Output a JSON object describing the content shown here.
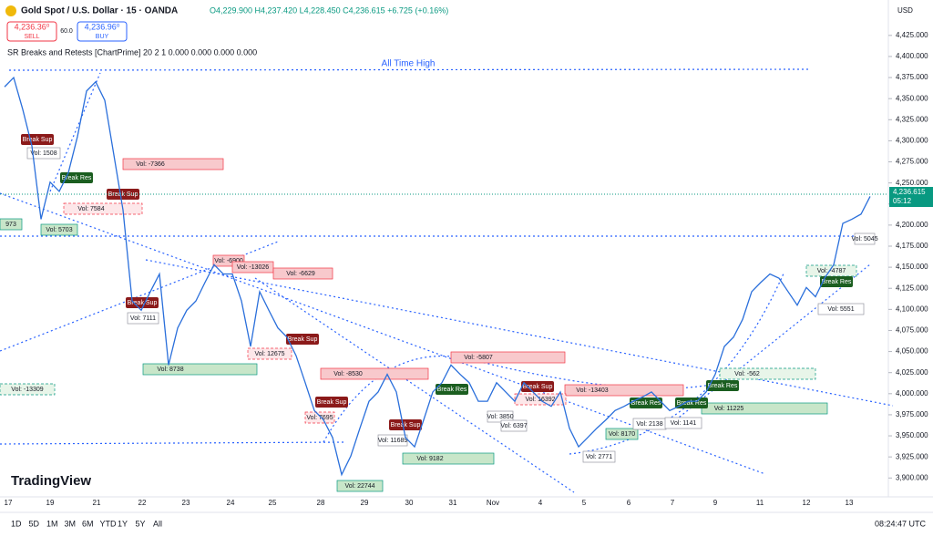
{
  "header": {
    "symbol": "Gold Spot / U.S. Dollar · 15 · OANDA",
    "ohlc": "O4,229.900 H4,237.420 L4,228.450 C4,236.615 +6.725 (+0.16%)",
    "sell_price": "4,236.36⁰",
    "sell_label": "SELL",
    "spread": "60.0",
    "buy_price": "4,236.96⁰",
    "buy_label": "BUY",
    "indicator": "SR Breaks and Retests [ChartPrime] 20 2 1 0.000 0.000 0.000 0.000",
    "currency": "USD"
  },
  "chart_data": {
    "type": "line",
    "color": "#2a6fdb",
    "annotation": "All Time High",
    "values": [
      4364,
      4375,
      4337,
      4294,
      4207,
      4251,
      4240,
      4262,
      4305,
      4359,
      4370,
      4348,
      4283,
      4218,
      4110,
      4099,
      4121,
      4142,
      4034,
      4078,
      4099,
      4110,
      4132,
      4153,
      4142,
      4142,
      4110,
      4056,
      4121,
      4099,
      4078,
      4067,
      4045,
      4013,
      3980,
      3969,
      3948,
      3904,
      3926,
      3959,
      3991,
      4002,
      4023,
      4002,
      3948,
      3937,
      3969,
      4002,
      4013,
      4034,
      4023,
      4013,
      3991,
      3991,
      4013,
      4002,
      3991,
      4013,
      4002,
      3991,
      3985,
      4002,
      3959,
      3937,
      3948,
      3959,
      3969,
      3980,
      3985,
      3991,
      3996,
      4002,
      3991,
      3980,
      3985,
      3991,
      3991,
      4002,
      4023,
      4056,
      4067,
      4088,
      4121,
      4132,
      4142,
      4137,
      4121,
      4105,
      4126,
      4115,
      4137,
      4153,
      4202,
      4207,
      4213,
      4234
    ],
    "ylim": [
      3883,
      4467
    ],
    "yticks": [
      {
        "value": 3900,
        "label": "3,900.000"
      },
      {
        "value": 3925,
        "label": "3,925.000"
      },
      {
        "value": 3950,
        "label": "3,950.000"
      },
      {
        "value": 3975,
        "label": "3,975.000"
      },
      {
        "value": 4000,
        "label": "4,000.000"
      },
      {
        "value": 4025,
        "label": "4,025.000"
      },
      {
        "value": 4050,
        "label": "4,050.000"
      },
      {
        "value": 4075,
        "label": "4,075.000"
      },
      {
        "value": 4100,
        "label": "4,100.000"
      },
      {
        "value": 4125,
        "label": "4,125.000"
      },
      {
        "value": 4150,
        "label": "4,150.000"
      },
      {
        "value": 4175,
        "label": "4,175.000"
      },
      {
        "value": 4200,
        "label": "4,200.000"
      },
      {
        "value": 4225,
        "label": "4,225.000"
      },
      {
        "value": 4250,
        "label": "4,250.000"
      },
      {
        "value": 4275,
        "label": "4,275.000"
      },
      {
        "value": 4300,
        "label": "4,300.000"
      },
      {
        "value": 4325,
        "label": "4,325.000"
      },
      {
        "value": 4350,
        "label": "4,350.000"
      },
      {
        "value": 4375,
        "label": "4,375.000"
      },
      {
        "value": 4400,
        "label": "4,400.000"
      },
      {
        "value": 4425,
        "label": "4,425.000"
      }
    ],
    "last_price": {
      "value": 4236.615,
      "label": "4,236.615"
    },
    "countdown": "05:12"
  },
  "time_axis": [
    "17",
    "19",
    "21",
    "22",
    "23",
    "24",
    "25",
    "28",
    "29",
    "30",
    "31",
    "Nov",
    "4",
    "5",
    "6",
    "7",
    "9",
    "11",
    "12",
    "13"
  ],
  "annotations": [
    "Vol: -7366",
    "Vol: 7584",
    "Vol: 1508",
    "973",
    "Vol: 5703",
    "Vol: -6900",
    "Vol: -13026",
    "Vol: -6629",
    "Vol: 7111",
    "Vol: 12675",
    "Vol: 8738",
    "Vol: -13309",
    "Vol: -8530",
    "Vol: -5807",
    "Vol: 7695",
    "Vol: 11689",
    "Vol: 9182",
    "Vol: 22744",
    "Vol: 3850",
    "Vol: 6397",
    "Vol: -13403",
    "Vol: 16392",
    "Vol: 8170",
    "Vol: 2771",
    "Vol: 2138",
    "Vol: 1141",
    "Vol: 11225",
    "Vol: -562",
    "Vol: -4787",
    "Vol: 5551",
    "Vol: 5045"
  ],
  "signals": [
    "Break Sup",
    "Break Res",
    "Break Sup",
    "Break Sup",
    "Break Sup",
    "Break Sup",
    "Break Sup",
    "Break Res",
    "Break Sup",
    "Break Res",
    "Break Res",
    "Break Res",
    "Break Res"
  ],
  "toolbar": {
    "ranges": [
      "1D",
      "5D",
      "1M",
      "3M",
      "6M",
      "YTD",
      "1Y",
      "5Y",
      "All"
    ],
    "clock": "08:24:47 UTC",
    "brand": "TradingView"
  }
}
